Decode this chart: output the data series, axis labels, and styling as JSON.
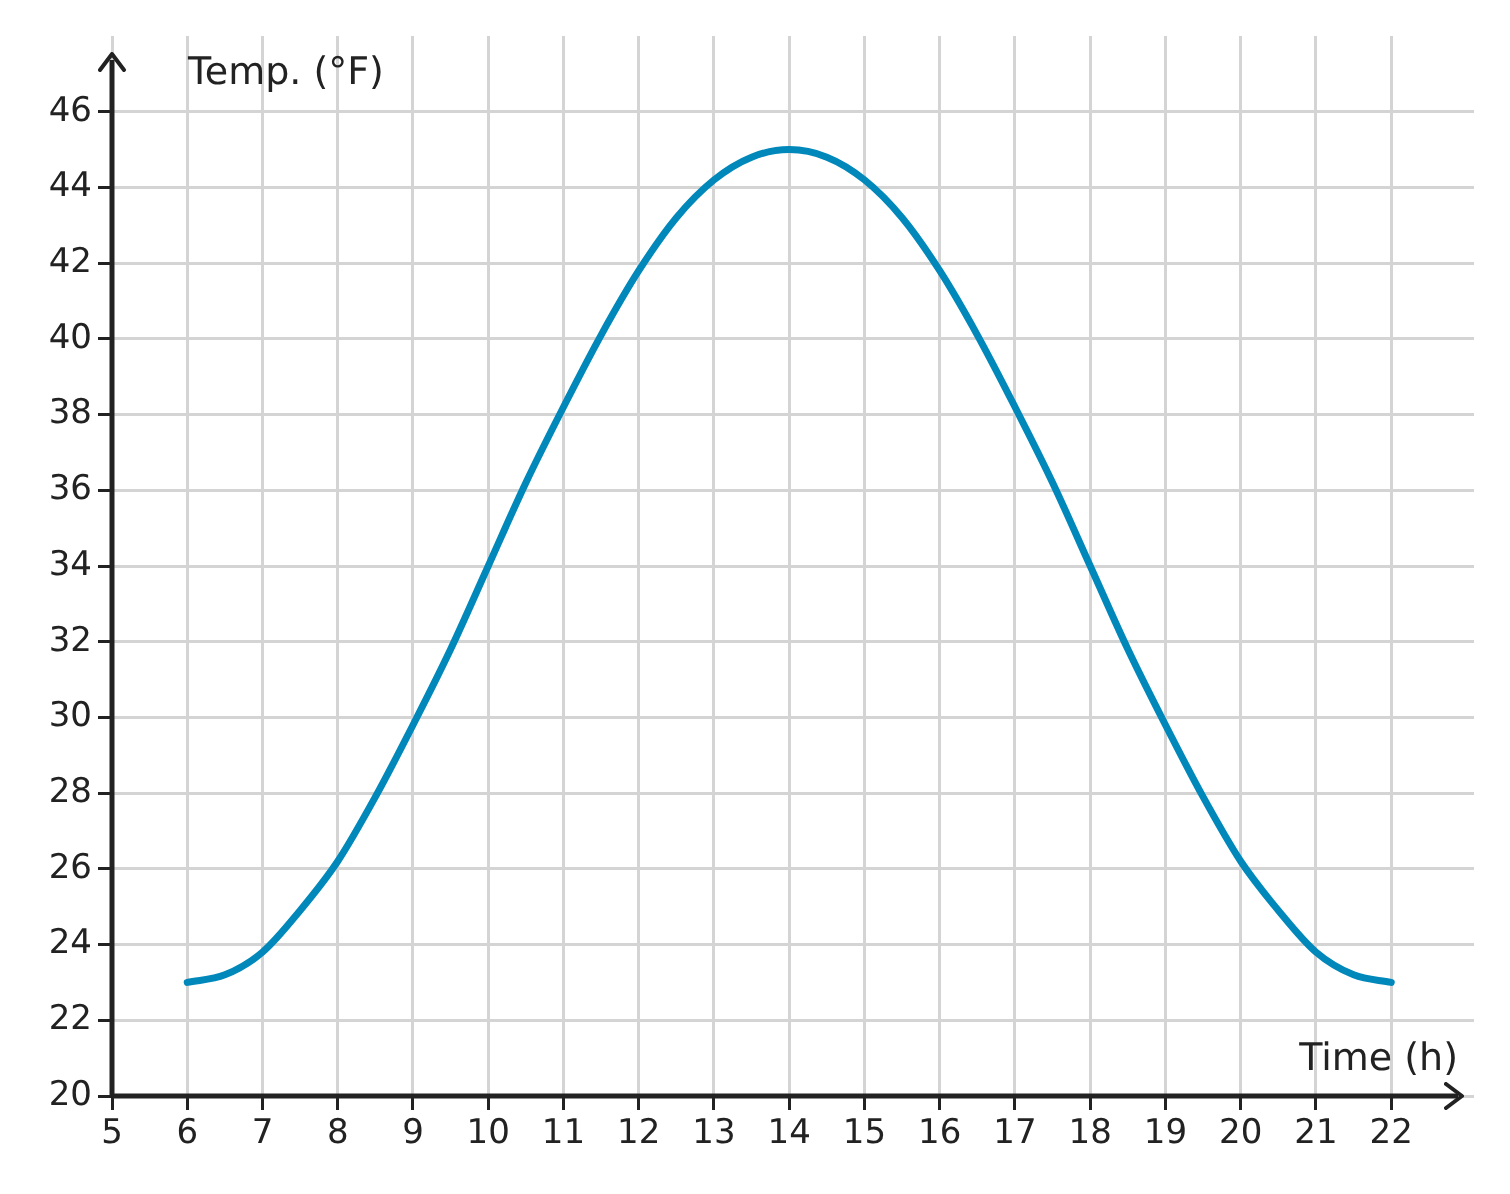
{
  "chart_data": {
    "type": "line",
    "xlabel": "Time (h)",
    "ylabel": "Temp. (°F)",
    "x": [
      6,
      6.5,
      7,
      7.5,
      8,
      8.5,
      9,
      9.5,
      10,
      10.5,
      11,
      11.5,
      12,
      12.5,
      13,
      13.5,
      14,
      14.5,
      15,
      15.5,
      16,
      16.5,
      17,
      17.5,
      18,
      18.5,
      19,
      19.5,
      20,
      20.5,
      21,
      21.5,
      22
    ],
    "series": [
      {
        "color": "#0088bb",
        "values": [
          23,
          23.2,
          23.8,
          24.9,
          26.2,
          27.9,
          29.8,
          31.8,
          34,
          36.2,
          38.2,
          40.1,
          41.8,
          43.2,
          44.2,
          44.8,
          45,
          44.8,
          44.2,
          43.2,
          41.8,
          40.1,
          38.2,
          36.2,
          34,
          31.8,
          29.8,
          27.9,
          26.2,
          24.9,
          23.8,
          23.2,
          23
        ]
      }
    ],
    "xlim": [
      5,
      23.1
    ],
    "xticks": [
      5,
      6,
      7,
      8,
      9,
      10,
      11,
      12,
      13,
      14,
      15,
      16,
      17,
      18,
      19,
      20,
      21,
      22
    ],
    "ylim": [
      20,
      48
    ],
    "yticks": [
      20,
      22,
      24,
      26,
      28,
      30,
      32,
      34,
      36,
      38,
      40,
      42,
      44,
      46
    ],
    "grid": true,
    "legend": false,
    "marker": "none",
    "line_style": "solid"
  }
}
